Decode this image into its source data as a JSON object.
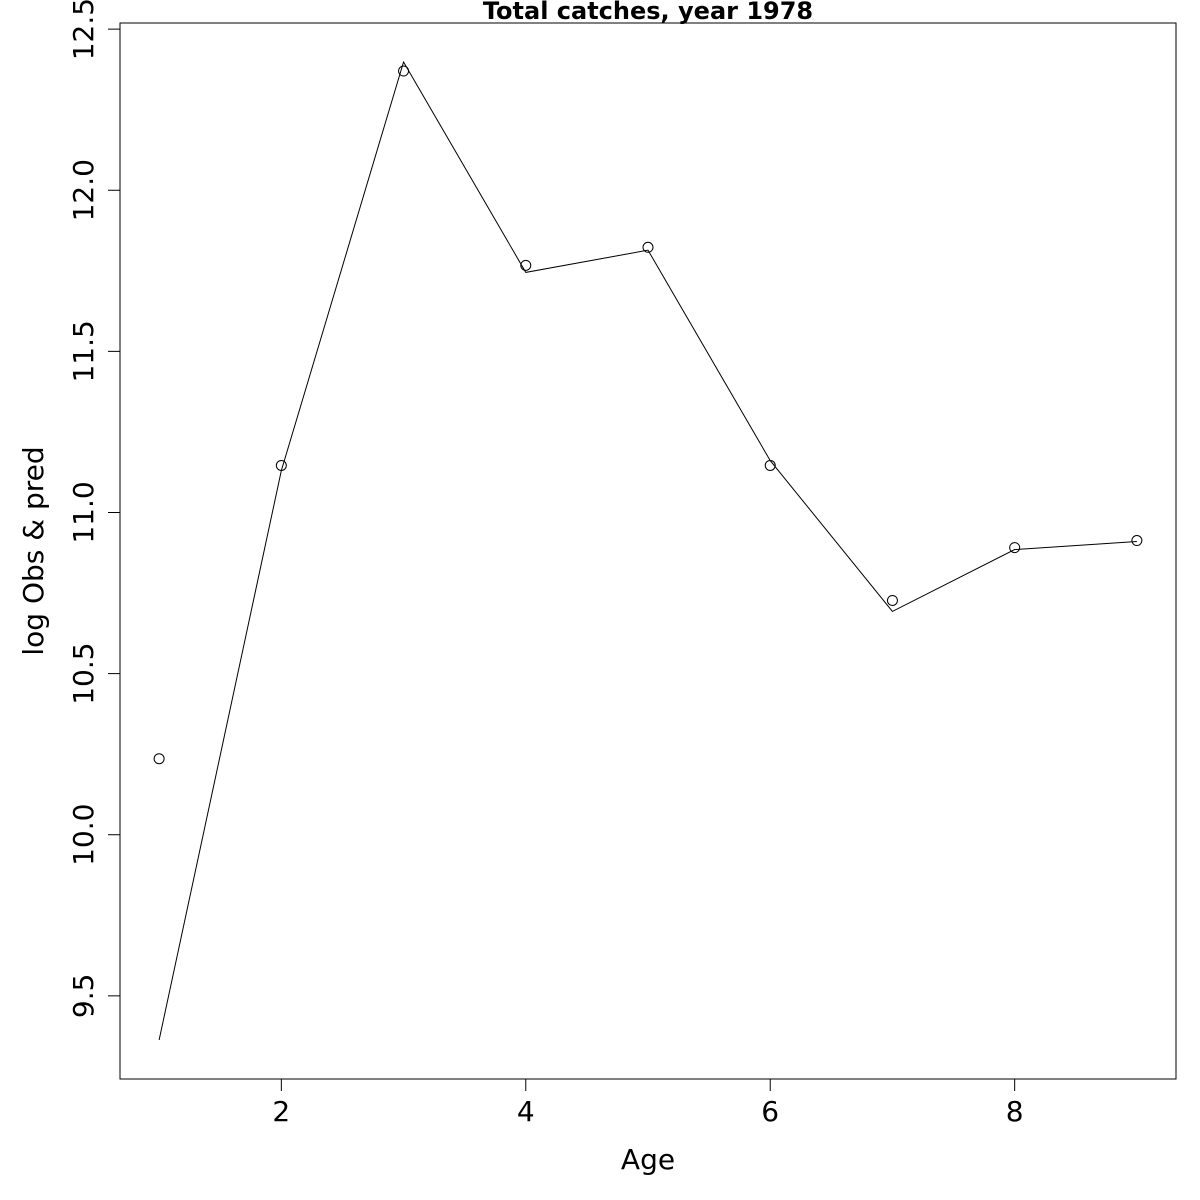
{
  "chart_data": {
    "type": "line",
    "title": "Total catches, year 1978",
    "x_label": "Age",
    "y_label": "log Obs & pred",
    "x": [
      1,
      2,
      3,
      4,
      5,
      6,
      7,
      8,
      9
    ],
    "series": [
      {
        "mode": "points",
        "color": "#000000",
        "values": [
          10.236,
          11.146,
          12.37,
          11.767,
          11.823,
          11.146,
          10.727,
          10.891,
          10.913
        ]
      },
      {
        "mode": "line",
        "color": "#000000",
        "values": [
          9.363,
          11.13,
          12.398,
          11.745,
          11.814,
          11.161,
          10.693,
          10.885,
          10.91
        ]
      }
    ],
    "xlim": [
      0.68,
      9.32
    ],
    "ylim": [
      9.242,
      12.519
    ],
    "xticks": [
      2,
      4,
      6,
      8
    ],
    "yticks": [
      {
        "value": 9.5,
        "label": "9.5"
      },
      {
        "value": 10,
        "label": "10.0"
      },
      {
        "value": 10.5,
        "label": "10.5"
      },
      {
        "value": 11,
        "label": "11.0"
      },
      {
        "value": 11.5,
        "label": "11.5"
      },
      {
        "value": 12,
        "label": "12.0"
      },
      {
        "value": 12.5,
        "label": "12.5"
      }
    ],
    "grid": false
  }
}
